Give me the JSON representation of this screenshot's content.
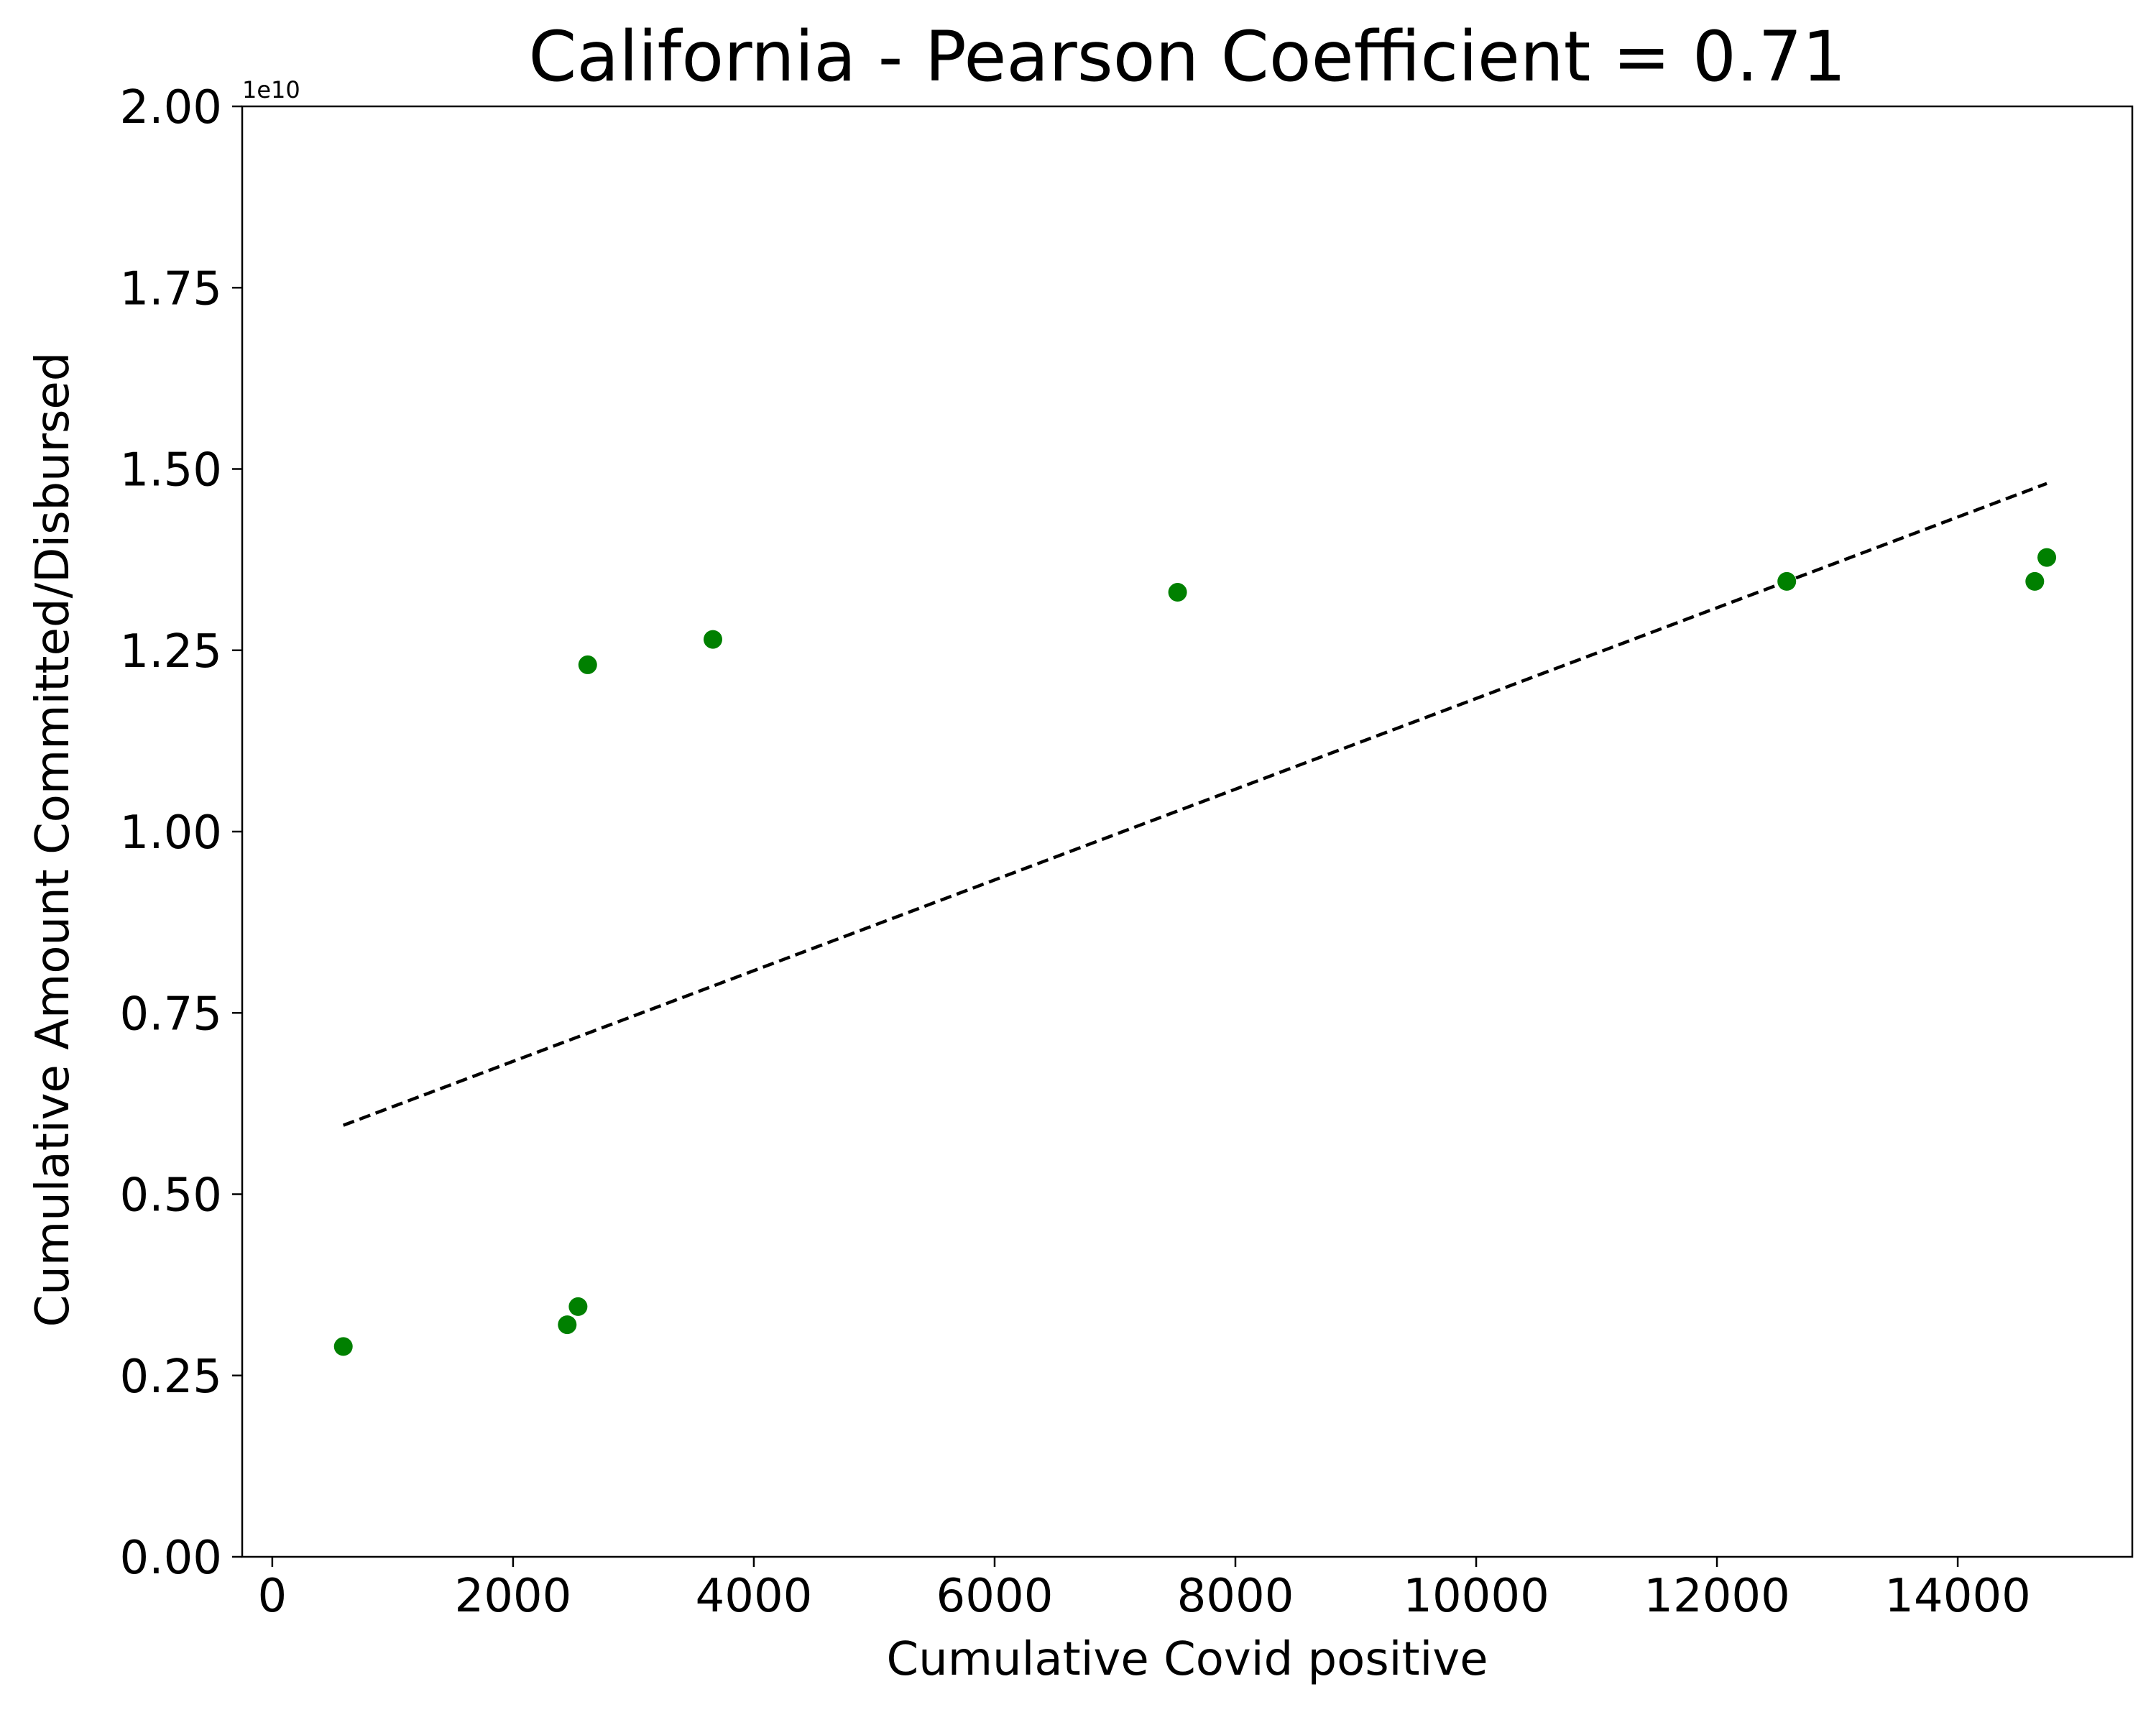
{
  "chart_data": {
    "type": "scatter",
    "title": "California - Pearson Coefficient = 0.71",
    "xlabel": "Cumulative Covid positive",
    "ylabel": "Cumulative Amount Committed/Disbursed",
    "y_offset_label": "1e10",
    "xlim": [
      -250,
      15450
    ],
    "ylim": [
      0,
      2.0
    ],
    "y_scale_multiplier": 10000000000.0,
    "x_ticks": [
      0,
      2000,
      4000,
      6000,
      8000,
      10000,
      12000,
      14000
    ],
    "x_tick_labels": [
      "0",
      "2000",
      "4000",
      "6000",
      "8000",
      "10000",
      "12000",
      "14000"
    ],
    "y_ticks": [
      0,
      0.25,
      0.5,
      0.75,
      1.0,
      1.25,
      1.5,
      1.75,
      2.0
    ],
    "y_tick_labels": [
      "0.00",
      "0.25",
      "0.50",
      "0.75",
      "1.00",
      "1.25",
      "1.50",
      "1.75",
      "2.00"
    ],
    "grid": false,
    "series": [
      {
        "kind": "points",
        "color": "#008000",
        "x": [
          590,
          2450,
          2540,
          2620,
          3660,
          7520,
          12580,
          14640,
          14740
        ],
        "y": [
          0.29,
          0.32,
          0.345,
          1.23,
          1.265,
          1.33,
          1.345,
          1.345,
          1.378
        ]
      },
      {
        "kind": "trend-line",
        "style": "dashed",
        "color": "#000000",
        "x": [
          590,
          14740
        ],
        "y": [
          0.595,
          1.48
        ]
      }
    ]
  }
}
